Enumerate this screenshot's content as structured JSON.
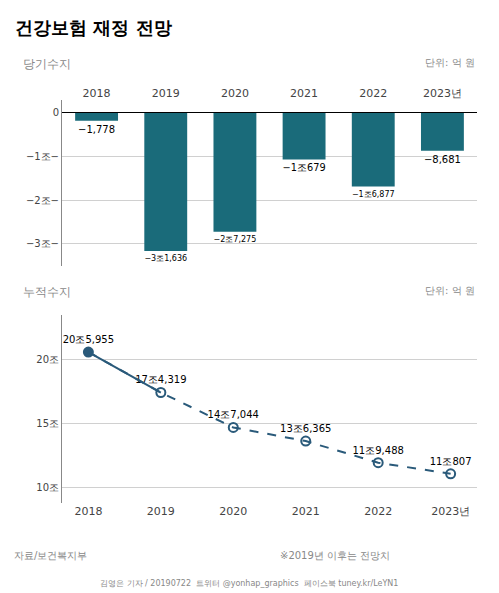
{
  "chart_data": [
    {
      "type": "bar",
      "title": "건강보험 재정 전망",
      "subtitle": "당기수지",
      "annotations": [
        "단위: 억 원"
      ],
      "categories": [
        "2018",
        "2019",
        "2020",
        "2021",
        "2022",
        "2023년"
      ],
      "values": [
        -1778,
        -31636,
        -27275,
        -10679,
        -16877,
        -8681
      ],
      "value_labels": [
        "−1,778",
        "−3조1,636",
        "−2조7,275",
        "−1조679",
        "−1조6,877",
        "−8,681"
      ],
      "data_labels": true,
      "color": "#1a6b7a",
      "ylim": [
        -35000,
        3000
      ],
      "yticks": [
        0,
        {
          "value": -10000,
          "label": "−1조−"
        },
        {
          "value": -20000,
          "label": "−2조−"
        },
        {
          "value": -30000,
          "label": "−3조−"
        }
      ],
      "grid": true
    },
    {
      "type": "line",
      "subtitle": "누적수지",
      "annotations": [
        "단위: 억 원",
        "자료/보건복지부",
        "※2019년 이후는 전망치",
        "김영은 기자 / 20190722  트위터 @yonhap_graphics  페이스북 tuney.kr/LeYN1"
      ],
      "categories": [
        "2018",
        "2019",
        "2020",
        "2021",
        "2022",
        "2023년"
      ],
      "values": [
        205955,
        174319,
        147044,
        136365,
        119488,
        110807
      ],
      "value_labels": [
        "20조5,955",
        "17조4,319",
        "14조7,044",
        "13조6,365",
        "11조9,488",
        "11조807"
      ],
      "data_labels": true,
      "color": "#2a5a7a",
      "marker": "circle",
      "line_style": "dashed",
      "ylim": [
        88000,
        235000
      ],
      "yticks": [
        {
          "value": 100000,
          "label": "10조"
        },
        {
          "value": 150000,
          "label": "15조"
        },
        {
          "value": 200000,
          "label": "20조"
        }
      ],
      "grid": true
    }
  ]
}
